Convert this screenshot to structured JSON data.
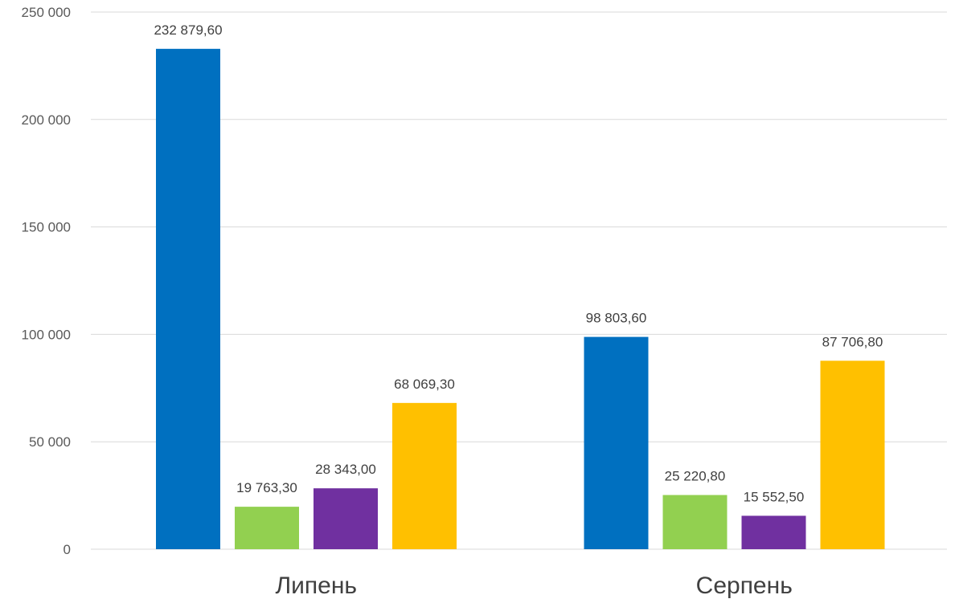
{
  "chart_data": {
    "type": "bar",
    "title": "",
    "xlabel": "",
    "ylabel": "",
    "ylim": [
      0,
      250000
    ],
    "y_ticks": [
      0,
      50000,
      100000,
      150000,
      200000,
      250000
    ],
    "y_tick_labels": [
      "0",
      "50 000",
      "100 000",
      "150 000",
      "200 000",
      "250 000"
    ],
    "grid": true,
    "legend": "none",
    "categories": [
      "Липень",
      "Серпень"
    ],
    "series": [
      {
        "color": "#0070C0",
        "values": [
          232879.6,
          98803.6
        ],
        "labels": [
          "232 879,60",
          "98 803,60"
        ]
      },
      {
        "color": "#92D050",
        "values": [
          19763.3,
          25220.8
        ],
        "labels": [
          "19 763,30",
          "25 220,80"
        ]
      },
      {
        "color": "#7030A0",
        "values": [
          28343.0,
          15552.5
        ],
        "labels": [
          "28 343,00",
          "15 552,50"
        ]
      },
      {
        "color": "#FFC000",
        "values": [
          68069.3,
          87706.8
        ],
        "labels": [
          "68 069,30",
          "87 706,80"
        ]
      }
    ]
  }
}
